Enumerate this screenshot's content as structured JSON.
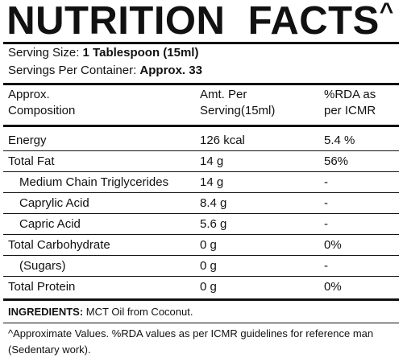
{
  "title": "NUTRITION  FACTS",
  "title_mark": "^",
  "serving_size_label": "Serving Size: ",
  "serving_size_value": "1 Tablespoon (15ml)",
  "servings_per_container_label": "Servings Per Container: ",
  "servings_per_container_value": "Approx. 33",
  "columns": {
    "composition_line1": "Approx.",
    "composition_line2": "Composition",
    "amount_line1": "Amt. Per",
    "amount_line2": "Serving(15ml)",
    "rda_line1": "%RDA as",
    "rda_line2": "per ICMR"
  },
  "rows": [
    {
      "name": "Energy",
      "amount": "126 kcal",
      "rda": "5.4 %"
    },
    {
      "name": "Total Fat",
      "amount": "14 g",
      "rda": "56%"
    },
    {
      "name": "Medium Chain Triglycerides",
      "amount": "14 g",
      "rda": "-"
    },
    {
      "name": "Caprylic Acid",
      "amount": "8.4 g",
      "rda": "-"
    },
    {
      "name": "Capric Acid",
      "amount": "5.6 g",
      "rda": "-"
    },
    {
      "name": "Total Carbohydrate",
      "amount": "0 g",
      "rda": "0%"
    },
    {
      "name": "(Sugars)",
      "amount": "0 g",
      "rda": "-"
    },
    {
      "name": "Total Protein",
      "amount": "0 g",
      "rda": "0%"
    }
  ],
  "ingredients_label": "INGREDIENTS:",
  "ingredients_text": " MCT Oil from Coconut.",
  "footnote": "^Approximate Values. %RDA values as per ICMR guidelines for reference man (Sedentary work)."
}
